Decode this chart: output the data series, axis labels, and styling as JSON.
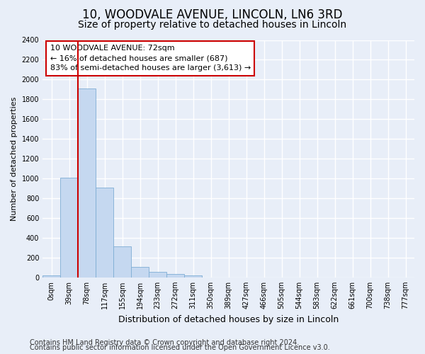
{
  "title_line1": "10, WOODVALE AVENUE, LINCOLN, LN6 3RD",
  "title_line2": "Size of property relative to detached houses in Lincoln",
  "xlabel": "Distribution of detached houses by size in Lincoln",
  "ylabel": "Number of detached properties",
  "bar_labels": [
    "0sqm",
    "39sqm",
    "78sqm",
    "117sqm",
    "155sqm",
    "194sqm",
    "233sqm",
    "272sqm",
    "311sqm",
    "350sqm",
    "389sqm",
    "427sqm",
    "466sqm",
    "505sqm",
    "544sqm",
    "583sqm",
    "622sqm",
    "661sqm",
    "700sqm",
    "738sqm",
    "777sqm"
  ],
  "bar_values": [
    20,
    1010,
    1910,
    910,
    315,
    105,
    55,
    32,
    18,
    0,
    0,
    0,
    0,
    0,
    0,
    0,
    0,
    0,
    0,
    0,
    0
  ],
  "bar_color": "#c5d8f0",
  "bar_edge_color": "#7eadd4",
  "ylim": [
    0,
    2400
  ],
  "yticks": [
    0,
    200,
    400,
    600,
    800,
    1000,
    1200,
    1400,
    1600,
    1800,
    2000,
    2200,
    2400
  ],
  "redline_x": 2.0,
  "annotation_line1": "10 WOODVALE AVENUE: 72sqm",
  "annotation_line2": "← 16% of detached houses are smaller (687)",
  "annotation_line3": "83% of semi-detached houses are larger (3,613) →",
  "annotation_box_facecolor": "#ffffff",
  "annotation_box_edgecolor": "#cc0000",
  "redline_color": "#cc0000",
  "footer_line1": "Contains HM Land Registry data © Crown copyright and database right 2024.",
  "footer_line2": "Contains public sector information licensed under the Open Government Licence v3.0.",
  "background_color": "#e8eef8",
  "plot_bg_color": "#e8eef8",
  "grid_color": "#ffffff",
  "title1_fontsize": 12,
  "title2_fontsize": 10,
  "xlabel_fontsize": 9,
  "ylabel_fontsize": 8,
  "tick_fontsize": 7,
  "footer_fontsize": 7,
  "annotation_fontsize": 8
}
